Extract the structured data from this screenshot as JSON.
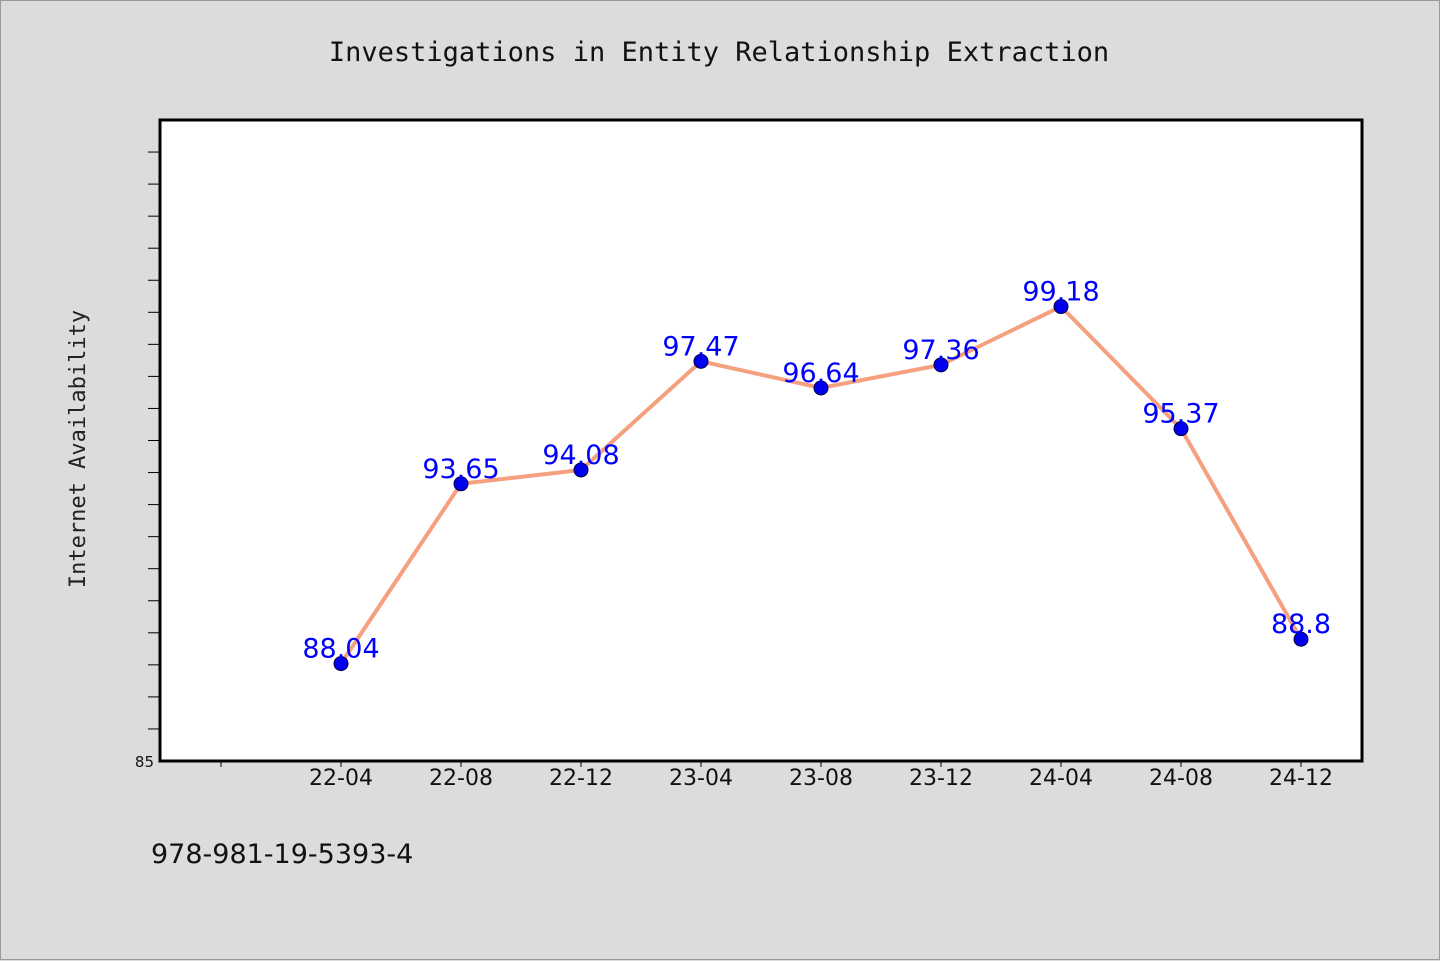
{
  "chart_data": {
    "type": "line",
    "title": "Investigations in Entity Relationship Extraction",
    "xlabel": "",
    "ylabel": "Internet Availability",
    "categories": [
      "22-04",
      "22-08",
      "22-12",
      "23-04",
      "23-08",
      "23-12",
      "24-04",
      "24-08",
      "24-12"
    ],
    "series": [
      {
        "values": [
          88.04,
          93.65,
          94.08,
          97.47,
          96.64,
          97.36,
          99.18,
          95.37,
          88.8
        ],
        "labels": [
          "88.04",
          "93.65",
          "94.08",
          "97.47",
          "96.64",
          "97.36",
          "99.18",
          "95.37",
          "88.8"
        ],
        "line_color": "#f5a07e",
        "marker_color": "#0000ee",
        "label_color": "#0000ff"
      }
    ],
    "ylim": [
      85,
      105
    ],
    "yticks": [
      {
        "value": 85,
        "label": "85"
      }
    ],
    "grid": false,
    "legend": "none"
  },
  "footer": {
    "isbn": "978-981-19-5393-4"
  },
  "colors": {
    "background": "#dcdcdc",
    "plot_background": "#ffffff",
    "axis": "#000000"
  }
}
